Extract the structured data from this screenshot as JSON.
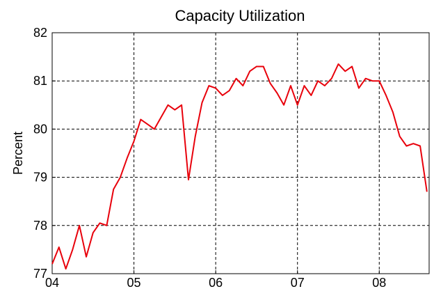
{
  "chart_data": {
    "type": "line",
    "title": "Capacity Utilization",
    "y_label": "Percent",
    "x": [
      4.0,
      4.083,
      4.167,
      4.25,
      4.333,
      4.417,
      4.5,
      4.583,
      4.667,
      4.75,
      4.833,
      4.917,
      5.0,
      5.083,
      5.167,
      5.25,
      5.333,
      5.417,
      5.5,
      5.583,
      5.667,
      5.75,
      5.833,
      5.917,
      6.0,
      6.083,
      6.167,
      6.25,
      6.333,
      6.417,
      6.5,
      6.583,
      6.667,
      6.75,
      6.833,
      6.917,
      7.0,
      7.083,
      7.167,
      7.25,
      7.333,
      7.417,
      7.5,
      7.583,
      7.667,
      7.75,
      7.833,
      7.917,
      8.0,
      8.083,
      8.167,
      8.25,
      8.333,
      8.417,
      8.5,
      8.583
    ],
    "values": [
      77.2,
      77.55,
      77.1,
      77.5,
      78.0,
      77.35,
      77.85,
      78.05,
      78.0,
      78.75,
      79.0,
      79.4,
      79.75,
      80.2,
      80.1,
      80.0,
      80.25,
      80.5,
      80.4,
      80.5,
      78.95,
      79.85,
      80.55,
      80.9,
      80.85,
      80.7,
      80.8,
      81.05,
      80.9,
      81.2,
      81.3,
      81.3,
      80.95,
      80.75,
      80.5,
      80.9,
      80.5,
      80.9,
      80.7,
      81.0,
      80.9,
      81.05,
      81.35,
      81.2,
      81.3,
      80.85,
      81.05,
      81.0,
      81.0,
      80.7,
      80.35,
      79.85,
      79.65,
      79.7,
      79.65,
      78.7
    ],
    "color": "#e8000b",
    "xlim": [
      4.0,
      8.61
    ],
    "xticks": [
      {
        "value": 4,
        "label": "04"
      },
      {
        "value": 5,
        "label": "05"
      },
      {
        "value": 6,
        "label": "06"
      },
      {
        "value": 7,
        "label": "07"
      },
      {
        "value": 8,
        "label": "08"
      }
    ],
    "ylim": [
      77,
      82
    ],
    "yticks": [
      77,
      78,
      79,
      80,
      81,
      82
    ],
    "grid": true
  }
}
